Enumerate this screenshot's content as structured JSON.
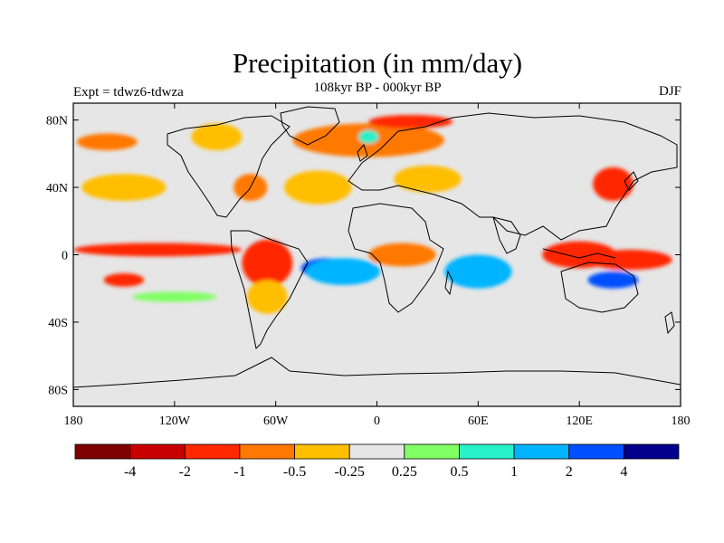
{
  "figure": {
    "title": "Precipitation (in mm/day)",
    "subtitle": "108kyr BP - 000kyr BP",
    "left_label": "Expt = tdwz6-tdwza",
    "right_label": "DJF"
  },
  "axes": {
    "x_ticks": [
      {
        "lon": -180,
        "label": "180"
      },
      {
        "lon": -120,
        "label": "120W"
      },
      {
        "lon": -60,
        "label": "60W"
      },
      {
        "lon": 0,
        "label": "0"
      },
      {
        "lon": 60,
        "label": "60E"
      },
      {
        "lon": 120,
        "label": "120E"
      },
      {
        "lon": 180,
        "label": "180"
      }
    ],
    "y_ticks": [
      {
        "lat": 80,
        "label": "80N"
      },
      {
        "lat": 40,
        "label": "40N"
      },
      {
        "lat": 0,
        "label": "0"
      },
      {
        "lat": -40,
        "label": "40S"
      },
      {
        "lat": -80,
        "label": "80S"
      }
    ],
    "lon_range": [
      -180,
      180
    ],
    "lat_range": [
      -90,
      90
    ]
  },
  "colorbar": {
    "colors": [
      "#7f0000",
      "#c80000",
      "#ff2800",
      "#ff7800",
      "#ffbe00",
      "#e6e6e6",
      "#80ff64",
      "#28f0c8",
      "#00b4ff",
      "#0050ff",
      "#00008c"
    ],
    "labels": [
      "-4",
      "-2",
      "-1",
      "-0.5",
      "-0.25",
      "0.25",
      "0.5",
      "1",
      "2",
      "4"
    ]
  },
  "background_color": "#e6e6e6",
  "anomaly_regions": [
    {
      "name": "north-atlantic-dry",
      "category": 3,
      "lon": -5,
      "lat": 68,
      "rx": 45,
      "ry": 10
    },
    {
      "name": "arctic-dry",
      "category": 2,
      "lon": 20,
      "lat": 79,
      "rx": 25,
      "ry": 4
    },
    {
      "name": "greenland-wet",
      "category": 7,
      "lon": -5,
      "lat": 70,
      "rx": 6,
      "ry": 4
    },
    {
      "name": "north-pacific-dry",
      "category": 3,
      "lon": -160,
      "lat": 67,
      "rx": 18,
      "ry": 5
    },
    {
      "name": "canada-dry",
      "category": 4,
      "lon": -95,
      "lat": 70,
      "rx": 15,
      "ry": 8
    },
    {
      "name": "east-us-dry",
      "category": 3,
      "lon": -75,
      "lat": 40,
      "rx": 10,
      "ry": 8
    },
    {
      "name": "north-atlantic-dry-2",
      "category": 4,
      "lon": -35,
      "lat": 40,
      "rx": 20,
      "ry": 10
    },
    {
      "name": "europe-dry",
      "category": 4,
      "lon": 30,
      "lat": 45,
      "rx": 20,
      "ry": 8
    },
    {
      "name": "pacific-northwest-dry",
      "category": 4,
      "lon": -150,
      "lat": 40,
      "rx": 25,
      "ry": 8
    },
    {
      "name": "east-pacific-dry-band",
      "category": 2,
      "lon": -130,
      "lat": 3,
      "rx": 50,
      "ry": 4
    },
    {
      "name": "amazon-dry",
      "category": 2,
      "lon": -65,
      "lat": -5,
      "rx": 15,
      "ry": 14
    },
    {
      "name": "south-atlantic-wet",
      "category": 9,
      "lon": -30,
      "lat": -8,
      "rx": 15,
      "ry": 6
    },
    {
      "name": "south-atlantic-wet-2",
      "category": 8,
      "lon": -20,
      "lat": -10,
      "rx": 22,
      "ry": 8
    },
    {
      "name": "africa-dry",
      "category": 3,
      "lon": 15,
      "lat": 0,
      "rx": 20,
      "ry": 7
    },
    {
      "name": "indian-ocean-wet",
      "category": 8,
      "lon": 60,
      "lat": -10,
      "rx": 20,
      "ry": 10
    },
    {
      "name": "maritime-continent-dry",
      "category": 2,
      "lon": 120,
      "lat": 0,
      "rx": 22,
      "ry": 8
    },
    {
      "name": "west-pacific-dry",
      "category": 2,
      "lon": 150,
      "lat": -3,
      "rx": 25,
      "ry": 6
    },
    {
      "name": "south-pacific-wet",
      "category": 9,
      "lon": 140,
      "lat": -15,
      "rx": 15,
      "ry": 5
    },
    {
      "name": "japan-dry",
      "category": 2,
      "lon": 140,
      "lat": 42,
      "rx": 12,
      "ry": 10
    },
    {
      "name": "south-america-dry",
      "category": 4,
      "lon": -65,
      "lat": -25,
      "rx": 12,
      "ry": 10
    },
    {
      "name": "south-pacific-dry",
      "category": 2,
      "lon": -150,
      "lat": -15,
      "rx": 12,
      "ry": 4
    },
    {
      "name": "southern-ocean-wet",
      "category": 6,
      "lon": -120,
      "lat": -25,
      "rx": 25,
      "ry": 3
    }
  ]
}
